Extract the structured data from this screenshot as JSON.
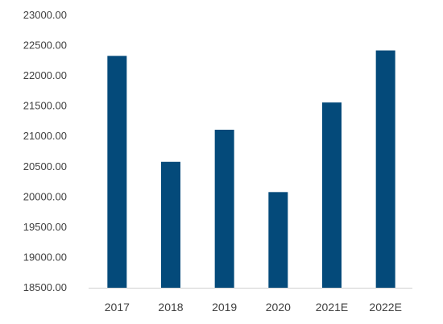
{
  "chart_data": {
    "type": "bar",
    "title": "",
    "xlabel": "",
    "ylabel": "",
    "categories": [
      "2017",
      "2018",
      "2019",
      "2020",
      "2021E",
      "2022E"
    ],
    "values": [
      22330,
      20580,
      21110,
      20080,
      21560,
      22420
    ],
    "ylim": [
      18500,
      23000
    ],
    "yticks": [
      "18500.00",
      "19000.00",
      "19500.00",
      "20000.00",
      "20500.00",
      "21000.00",
      "21500.00",
      "22000.00",
      "22500.00",
      "23000.00"
    ],
    "grid": false,
    "legend": "none",
    "bar_color": "#044A7A"
  }
}
